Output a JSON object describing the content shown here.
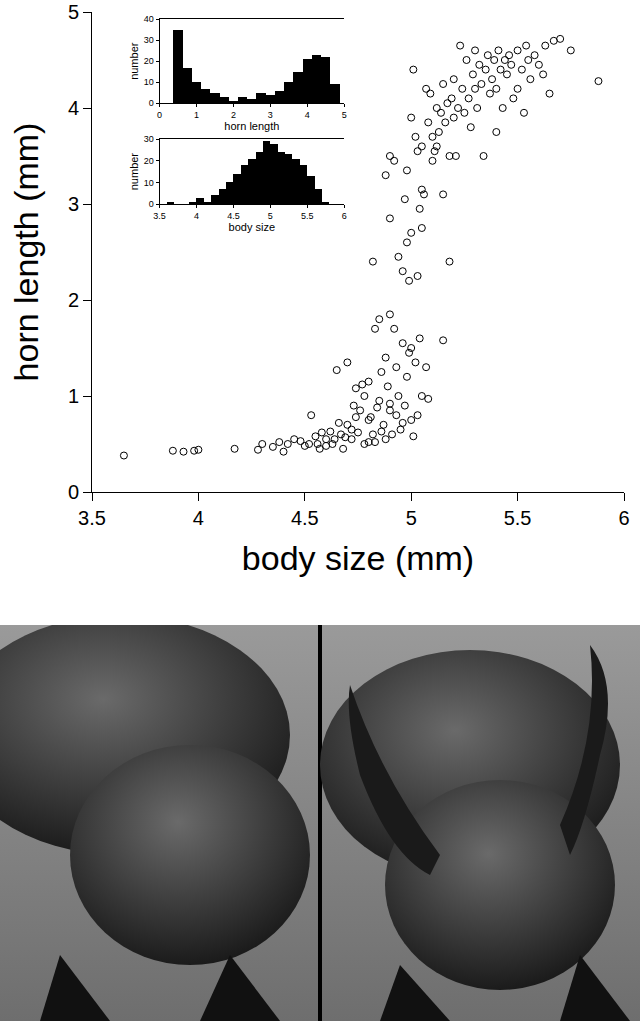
{
  "chart_data": [
    {
      "type": "scatter",
      "xlabel": "body size (mm)",
      "ylabel": "horn length (mm)",
      "x": [
        3.65,
        3.88,
        3.93,
        3.98,
        4.0,
        4.17,
        4.28,
        4.3,
        4.35,
        4.38,
        4.4,
        4.42,
        4.45,
        4.48,
        4.52,
        4.53,
        4.55,
        4.57,
        4.58,
        4.6,
        4.62,
        4.63,
        4.65,
        4.67,
        4.68,
        4.7,
        4.7,
        4.72,
        4.73,
        4.74,
        4.75,
        4.76,
        4.78,
        4.78,
        4.8,
        4.8,
        4.82,
        4.83,
        4.83,
        4.85,
        4.85,
        4.86,
        4.87,
        4.88,
        4.88,
        4.9,
        4.9,
        4.92,
        4.93,
        4.94,
        4.95,
        4.96,
        4.97,
        4.98,
        5.0,
        5.0,
        5.02,
        5.03,
        5.05,
        5.07,
        5.08,
        5.15,
        4.6,
        4.66,
        4.69,
        4.72,
        4.77,
        4.81,
        4.84,
        4.89,
        4.91,
        4.93,
        4.99,
        5.01,
        5.04,
        4.96,
        4.9,
        4.86,
        4.8,
        4.74,
        4.64,
        4.56,
        4.5,
        4.82,
        4.88,
        4.9,
        4.9,
        4.92,
        4.94,
        4.96,
        4.97,
        4.98,
        4.98,
        4.99,
        5.0,
        5.0,
        5.01,
        5.02,
        5.03,
        5.03,
        5.04,
        5.05,
        5.05,
        5.06,
        5.07,
        5.08,
        5.09,
        5.1,
        5.11,
        5.12,
        5.13,
        5.14,
        5.15,
        5.15,
        5.16,
        5.17,
        5.18,
        5.18,
        5.19,
        5.2,
        5.2,
        5.21,
        5.22,
        5.23,
        5.24,
        5.25,
        5.26,
        5.27,
        5.28,
        5.29,
        5.3,
        5.3,
        5.31,
        5.32,
        5.33,
        5.34,
        5.35,
        5.36,
        5.37,
        5.38,
        5.39,
        5.4,
        5.4,
        5.41,
        5.42,
        5.43,
        5.44,
        5.45,
        5.46,
        5.47,
        5.48,
        5.5,
        5.5,
        5.52,
        5.53,
        5.54,
        5.55,
        5.56,
        5.58,
        5.6,
        5.62,
        5.63,
        5.65,
        5.67,
        5.7,
        5.75,
        5.88,
        5.1,
        5.05,
        5.12
      ],
      "values": [
        0.38,
        0.43,
        0.42,
        0.43,
        0.44,
        0.45,
        0.44,
        0.5,
        0.47,
        0.52,
        0.42,
        0.5,
        0.55,
        0.53,
        0.5,
        0.8,
        0.58,
        0.45,
        0.62,
        0.55,
        0.63,
        0.5,
        1.27,
        0.6,
        0.45,
        1.35,
        0.7,
        0.55,
        0.9,
        1.08,
        0.62,
        0.85,
        0.5,
        1.0,
        0.75,
        1.15,
        0.6,
        1.7,
        0.52,
        1.8,
        0.95,
        1.25,
        0.7,
        1.4,
        0.55,
        1.85,
        0.85,
        1.7,
        1.3,
        1.0,
        0.65,
        1.55,
        0.9,
        1.2,
        1.5,
        0.75,
        1.35,
        0.8,
        1.0,
        1.3,
        0.97,
        1.58,
        0.48,
        0.72,
        0.57,
        0.65,
        1.12,
        0.78,
        0.88,
        1.1,
        0.6,
        0.8,
        1.45,
        0.58,
        1.6,
        0.72,
        0.92,
        0.63,
        0.52,
        0.78,
        0.55,
        0.5,
        0.48,
        2.4,
        3.3,
        3.5,
        2.85,
        3.45,
        2.45,
        2.3,
        3.05,
        2.6,
        3.35,
        2.2,
        3.9,
        2.7,
        4.4,
        3.7,
        3.55,
        2.25,
        2.95,
        3.6,
        2.75,
        3.1,
        4.2,
        3.85,
        4.15,
        3.7,
        3.55,
        4.0,
        3.75,
        3.95,
        3.1,
        4.25,
        3.85,
        4.05,
        2.4,
        3.5,
        4.1,
        3.9,
        4.3,
        3.5,
        4.0,
        4.65,
        4.2,
        3.95,
        4.5,
        4.1,
        3.8,
        4.35,
        4.2,
        4.6,
        4.0,
        4.45,
        4.25,
        3.5,
        4.4,
        4.55,
        4.15,
        4.3,
        4.5,
        3.75,
        4.2,
        4.6,
        4.4,
        4.0,
        4.5,
        4.35,
        4.55,
        4.45,
        4.1,
        4.2,
        4.6,
        4.4,
        3.95,
        4.65,
        4.5,
        4.3,
        4.55,
        4.45,
        4.35,
        4.65,
        4.15,
        4.7,
        4.72,
        4.6,
        4.28,
        3.45,
        3.15,
        3.6
      ],
      "marker": "open circle",
      "color": "#000000",
      "xlim": [
        3.5,
        6
      ],
      "xticks": [
        3.5,
        4,
        4.5,
        5,
        5.5,
        6
      ],
      "ylim": [
        0,
        5
      ],
      "yticks": [
        0,
        1,
        2,
        3,
        4,
        5
      ],
      "grid": false
    },
    {
      "type": "histogram",
      "xlabel": "horn length",
      "ylabel": "number",
      "bins": [
        0.375,
        0.625,
        0.875,
        1.125,
        1.375,
        1.625,
        1.875,
        2.125,
        2.375,
        2.625,
        2.875,
        3.125,
        3.375,
        3.625,
        3.875,
        4.125,
        4.375,
        4.625,
        4.875
      ],
      "counts": [
        35,
        17,
        10,
        7,
        5,
        3,
        1,
        3,
        2,
        5,
        4,
        6,
        10,
        15,
        21,
        23,
        22,
        9
      ],
      "color": "#000000",
      "xlim": [
        0,
        5
      ],
      "xticks": [
        0,
        1,
        2,
        3,
        4,
        5
      ],
      "ylim": [
        0,
        40
      ],
      "yticks": [
        0,
        10,
        20,
        30,
        40
      ],
      "grid": false
    },
    {
      "type": "histogram",
      "xlabel": "body size",
      "ylabel": "number",
      "bins": [
        3.6,
        3.7,
        3.8,
        3.9,
        4.0,
        4.1,
        4.2,
        4.3,
        4.4,
        4.5,
        4.6,
        4.7,
        4.8,
        4.9,
        5.0,
        5.1,
        5.2,
        5.3,
        5.4,
        5.5,
        5.6,
        5.7,
        5.8
      ],
      "counts": [
        1,
        0,
        0,
        1,
        3,
        1,
        4,
        7,
        10,
        14,
        18,
        21,
        24,
        29,
        28,
        24,
        23,
        21,
        18,
        13,
        7,
        1
      ],
      "color": "#000000",
      "xlim": [
        3.5,
        6
      ],
      "xticks": [
        3.5,
        4,
        4.5,
        5,
        5.5,
        6
      ],
      "ylim": [
        0,
        30
      ],
      "yticks": [
        0,
        10,
        20,
        30
      ],
      "grid": false
    }
  ]
}
